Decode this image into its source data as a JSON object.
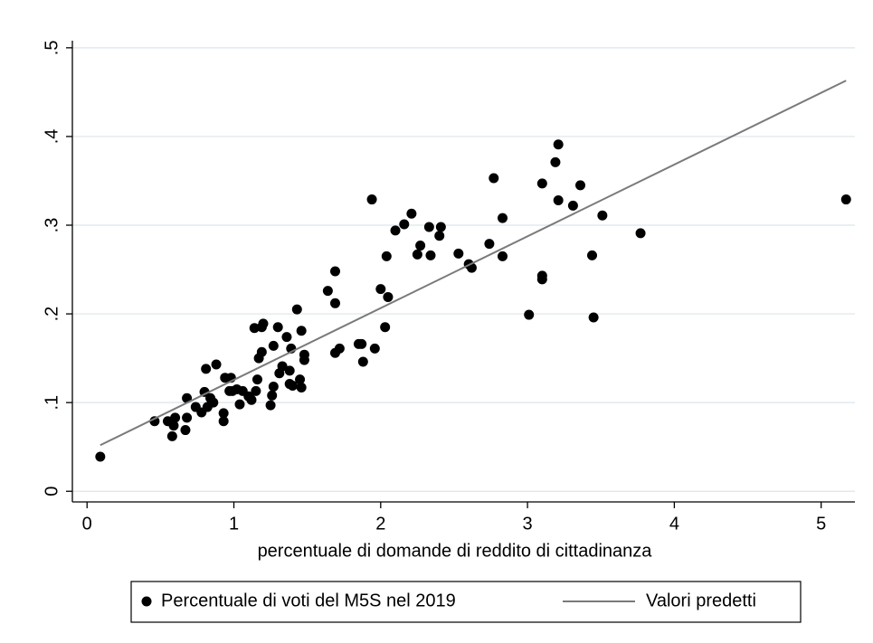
{
  "chart_data": {
    "type": "scatter",
    "x_label": "percentuale di domande di reddito di cittadinanza",
    "xlim": [
      -0.1,
      5.23
    ],
    "ylim": [
      -0.012,
      0.508
    ],
    "xticks": [
      0,
      1,
      2,
      3,
      4,
      5
    ],
    "yticks": [
      0,
      {
        "value": 0.1,
        "label": ".1"
      },
      {
        "value": 0.2,
        "label": ".2"
      },
      {
        "value": 0.3,
        "label": ".3"
      },
      {
        "value": 0.4,
        "label": ".4"
      },
      {
        "value": 0.5,
        "label": ".5"
      }
    ],
    "grid": true,
    "legend": "bottom",
    "series": [
      {
        "name": "Percentuale di voti del M5S nel 2019",
        "type": "scatter",
        "color": "#000000",
        "x": [
          0.09,
          0.46,
          0.55,
          0.58,
          0.59,
          0.6,
          0.67,
          0.68,
          0.68,
          0.74,
          0.78,
          0.8,
          0.81,
          0.82,
          0.84,
          0.86,
          0.88,
          0.93,
          0.93,
          0.94,
          0.97,
          0.98,
          0.99,
          1.02,
          1.04,
          1.06,
          1.1,
          1.12,
          1.14,
          1.15,
          1.16,
          1.17,
          1.19,
          1.19,
          1.2,
          1.25,
          1.26,
          1.27,
          1.27,
          1.3,
          1.31,
          1.33,
          1.36,
          1.38,
          1.38,
          1.39,
          1.4,
          1.43,
          1.45,
          1.46,
          1.46,
          1.48,
          1.48,
          1.64,
          1.69,
          1.69,
          1.69,
          1.72,
          1.85,
          1.87,
          1.88,
          1.94,
          1.96,
          2.0,
          2.03,
          2.04,
          2.05,
          2.1,
          2.16,
          2.21,
          2.25,
          2.27,
          2.33,
          2.34,
          2.4,
          2.41,
          2.53,
          2.6,
          2.62,
          2.74,
          2.77,
          2.83,
          2.83,
          3.01,
          3.1,
          3.1,
          3.1,
          3.19,
          3.21,
          3.21,
          3.31,
          3.36,
          3.44,
          3.45,
          3.51,
          3.77,
          5.17
        ],
        "values": [
          0.039,
          0.079,
          0.079,
          0.062,
          0.074,
          0.083,
          0.069,
          0.083,
          0.105,
          0.095,
          0.089,
          0.112,
          0.138,
          0.095,
          0.105,
          0.1,
          0.143,
          0.079,
          0.088,
          0.128,
          0.113,
          0.128,
          0.113,
          0.115,
          0.098,
          0.113,
          0.107,
          0.103,
          0.184,
          0.113,
          0.126,
          0.15,
          0.185,
          0.157,
          0.189,
          0.097,
          0.108,
          0.118,
          0.164,
          0.185,
          0.133,
          0.141,
          0.174,
          0.121,
          0.136,
          0.161,
          0.119,
          0.205,
          0.126,
          0.117,
          0.181,
          0.148,
          0.154,
          0.226,
          0.248,
          0.156,
          0.212,
          0.161,
          0.166,
          0.166,
          0.146,
          0.329,
          0.161,
          0.228,
          0.185,
          0.265,
          0.219,
          0.294,
          0.301,
          0.313,
          0.267,
          0.277,
          0.298,
          0.266,
          0.288,
          0.298,
          0.268,
          0.256,
          0.252,
          0.279,
          0.353,
          0.308,
          0.265,
          0.199,
          0.347,
          0.239,
          0.243,
          0.371,
          0.391,
          0.328,
          0.322,
          0.345,
          0.266,
          0.196,
          0.311,
          0.291,
          0.329
        ]
      },
      {
        "name": "Valori predetti",
        "type": "line",
        "color": "#7a7a7a",
        "x": [
          0.09,
          5.17
        ],
        "values": [
          0.052,
          0.463
        ]
      }
    ]
  }
}
